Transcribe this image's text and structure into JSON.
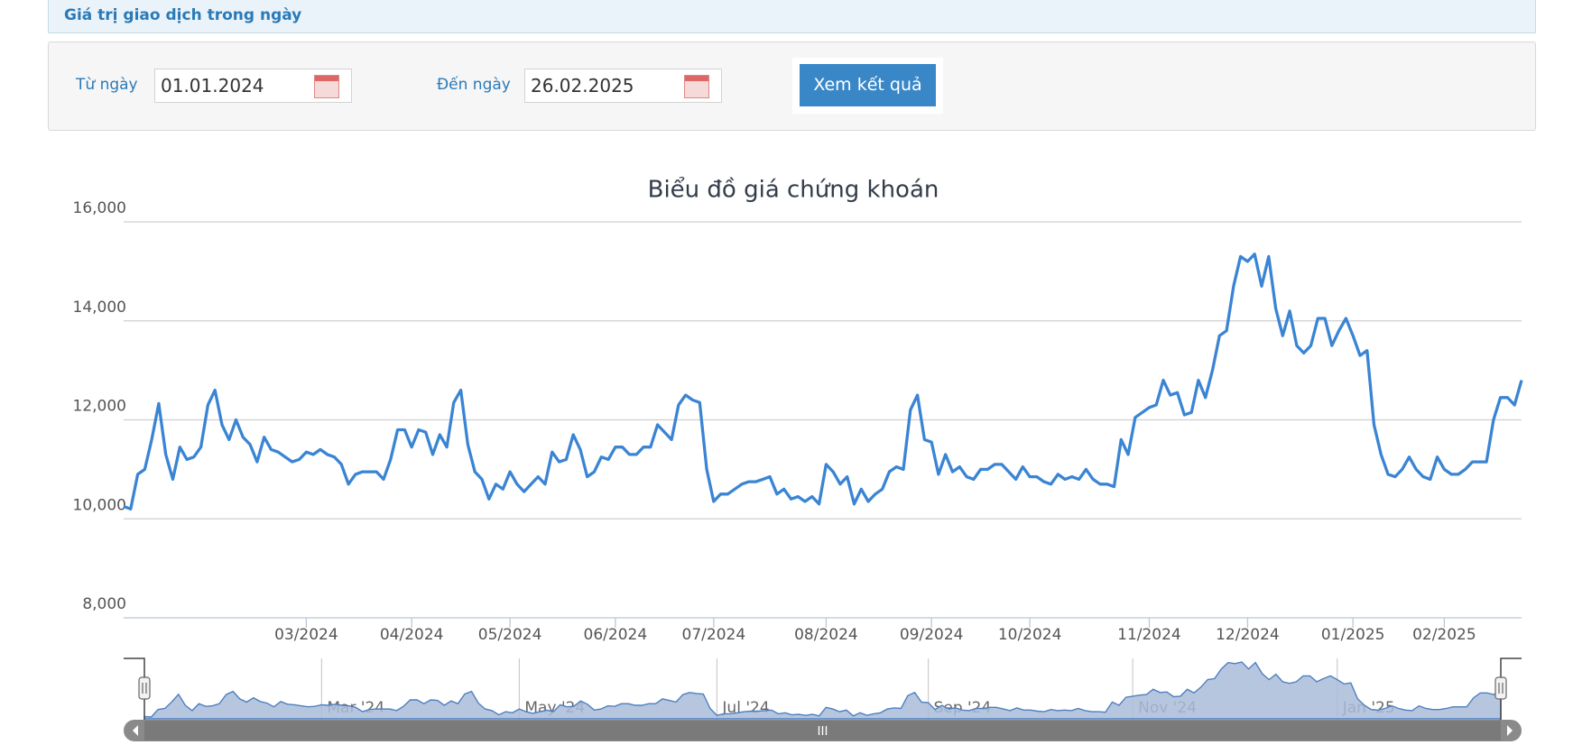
{
  "header": {
    "title": "Giá trị giao dịch trong ngày"
  },
  "form": {
    "from_label": "Từ ngày",
    "from_value": "01.01.2024",
    "to_label": "Đến ngày",
    "to_value": "26.02.2025",
    "button": "Xem kết quả"
  },
  "chart_data": {
    "type": "line",
    "title": "Biểu đồ giá chứng khoán",
    "color": "#3a84d4",
    "grid": true,
    "values": [
      10250,
      10200,
      10900,
      11000,
      11600,
      12330,
      11300,
      10800,
      11450,
      11200,
      11250,
      11450,
      12300,
      12600,
      11900,
      11600,
      12000,
      11650,
      11500,
      11150,
      11650,
      11400,
      11350,
      11250,
      11150,
      11200,
      11350,
      11300,
      11400,
      11300,
      11250,
      11100,
      10700,
      10900,
      10950,
      10950,
      10950,
      10800,
      11200,
      11800,
      11800,
      11450,
      11800,
      11750,
      11300,
      11700,
      11450,
      12350,
      12600,
      11500,
      10950,
      10800,
      10400,
      10700,
      10600,
      10950,
      10700,
      10550,
      10700,
      10850,
      10700,
      11350,
      11150,
      11200,
      11700,
      11400,
      10850,
      10950,
      11250,
      11200,
      11450,
      11450,
      11300,
      11300,
      11450,
      11450,
      11900,
      11750,
      11600,
      12300,
      12500,
      12400,
      12350,
      11000,
      10350,
      10500,
      10500,
      10600,
      10700,
      10750,
      10750,
      10800,
      10850,
      10500,
      10600,
      10400,
      10450,
      10350,
      10450,
      10300,
      11100,
      10950,
      10700,
      10850,
      10300,
      10600,
      10350,
      10500,
      10600,
      10950,
      11050,
      11000,
      12200,
      12500,
      11600,
      11550,
      10900,
      11300,
      10950,
      11050,
      10850,
      10800,
      11000,
      11000,
      11100,
      11100,
      10950,
      10800,
      11050,
      10850,
      10850,
      10750,
      10700,
      10900,
      10800,
      10850,
      10800,
      11000,
      10800,
      10700,
      10700,
      10650,
      11600,
      11300,
      12050,
      12150,
      12250,
      12300,
      12800,
      12500,
      12550,
      12100,
      12150,
      12800,
      12450,
      13000,
      13700,
      13800,
      14700,
      15300,
      15200,
      15350,
      14700,
      15300,
      14250,
      13700,
      14200,
      13500,
      13350,
      13500,
      14050,
      14050,
      13500,
      13800,
      14050,
      13700,
      13300,
      13400,
      11900,
      11300,
      10900,
      10850,
      11000,
      11250,
      11000,
      10850,
      10800,
      11250,
      11000,
      10900,
      10900,
      11000,
      11150,
      11150,
      11150,
      12000,
      12450,
      12450,
      12300,
      12800
    ],
    "xlim": [
      0,
      199
    ],
    "xticks": [
      {
        "value": 26,
        "label": "03/2024"
      },
      {
        "value": 41,
        "label": "04/2024"
      },
      {
        "value": 55,
        "label": "05/2024"
      },
      {
        "value": 70,
        "label": "06/2024"
      },
      {
        "value": 84,
        "label": "07/2024"
      },
      {
        "value": 100,
        "label": "08/2024"
      },
      {
        "value": 115,
        "label": "09/2024"
      },
      {
        "value": 129,
        "label": "10/2024"
      },
      {
        "value": 146,
        "label": "11/2024"
      },
      {
        "value": 160,
        "label": "12/2024"
      },
      {
        "value": 175,
        "label": "01/2025"
      },
      {
        "value": 188,
        "label": "02/2025"
      }
    ],
    "ylim": [
      8000,
      16000
    ],
    "yticks": [
      {
        "value": 8000,
        "label": "8,000"
      },
      {
        "value": 10000,
        "label": "10,000"
      },
      {
        "value": 12000,
        "label": "12,000"
      },
      {
        "value": 14000,
        "label": "14,000"
      },
      {
        "value": 16000,
        "label": "16,000"
      }
    ],
    "navigator_xticks": [
      {
        "value": 26,
        "label": "Mar '24"
      },
      {
        "value": 55,
        "label": "May '24"
      },
      {
        "value": 84,
        "label": "Jul '24"
      },
      {
        "value": 115,
        "label": "Sep '24"
      },
      {
        "value": 145,
        "label": "Nov '24"
      },
      {
        "value": 175,
        "label": "Jan '25"
      }
    ]
  }
}
